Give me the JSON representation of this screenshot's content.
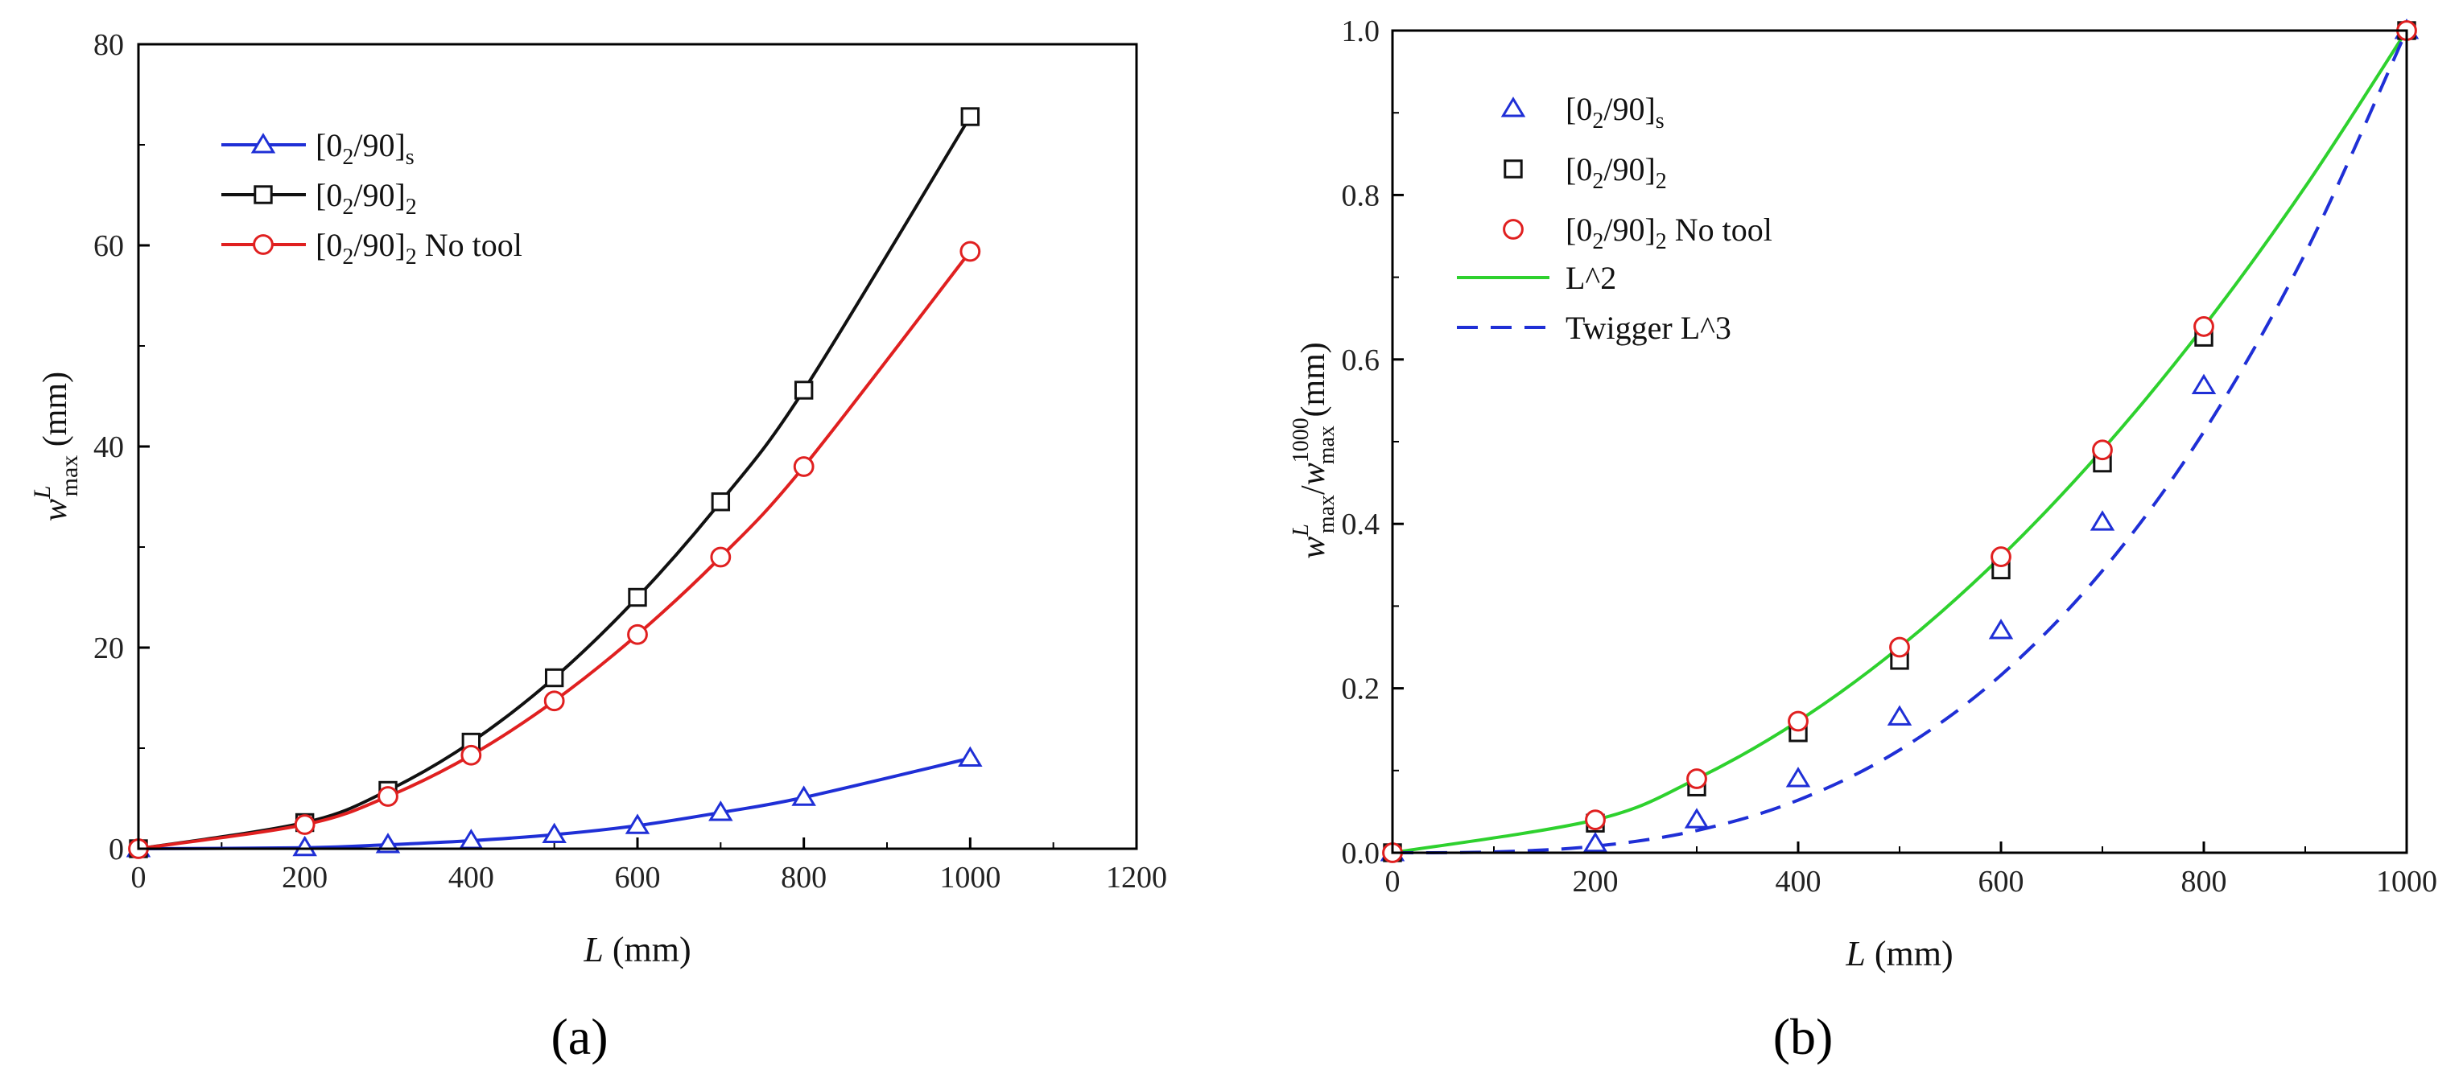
{
  "chart_data": [
    {
      "panel": "a",
      "type": "line",
      "caption": "(a)",
      "xlabel_sym": "L",
      "xlabel_unit": " (mm)",
      "ylabel_sym": "w",
      "ylabel_sup": "L",
      "ylabel_sub": "max",
      "ylabel_unit": " (mm)",
      "xlim": [
        0,
        1200
      ],
      "ylim": [
        0,
        80
      ],
      "xticks": [
        0,
        200,
        400,
        600,
        800,
        1000,
        1200
      ],
      "yticks": [
        0,
        20,
        40,
        60,
        80
      ],
      "series": [
        {
          "name_main": "[0",
          "name_sub1": "2",
          "name_mid": "/90]",
          "name_sub2": "s",
          "name_suffix": "",
          "marker": "triangle",
          "color": "#1f2fd6",
          "x": [
            0,
            200,
            300,
            400,
            500,
            600,
            700,
            800,
            1000
          ],
          "y": [
            0,
            0.1,
            0.4,
            0.8,
            1.4,
            2.3,
            3.6,
            5.1,
            9.0
          ]
        },
        {
          "name_main": "[0",
          "name_sub1": "2",
          "name_mid": "/90]",
          "name_sub2": "2",
          "name_suffix": "",
          "marker": "square",
          "color": "#111111",
          "x": [
            0,
            200,
            300,
            400,
            500,
            600,
            700,
            800,
            1000
          ],
          "y": [
            0,
            2.6,
            5.8,
            10.6,
            17.0,
            25.0,
            34.5,
            45.6,
            72.8
          ]
        },
        {
          "name_main": "[0",
          "name_sub1": "2",
          "name_mid": "/90]",
          "name_sub2": "2",
          "name_suffix": " No tool",
          "marker": "circle",
          "color": "#e02020",
          "x": [
            0,
            200,
            300,
            400,
            500,
            600,
            700,
            800,
            1000
          ],
          "y": [
            0,
            2.4,
            5.2,
            9.3,
            14.7,
            21.3,
            29.0,
            38.0,
            59.4
          ]
        }
      ]
    },
    {
      "panel": "b",
      "type": "scatter",
      "caption": "(b)",
      "xlabel_sym": "L",
      "xlabel_unit": " (mm)",
      "ylabel_sym": "w",
      "ylabel_sup": "L",
      "ylabel_sub": "max",
      "ylabel_sym2": "w",
      "ylabel_sup2": "1000",
      "ylabel_sub2": "max",
      "ylabel_unit": " (mm)",
      "xlim": [
        0,
        1000
      ],
      "ylim": [
        0,
        1.0
      ],
      "xticks": [
        0,
        200,
        400,
        600,
        800,
        1000
      ],
      "yticks": [
        "0.0",
        "0.2",
        "0.4",
        "0.6",
        "0.8",
        "1.0"
      ],
      "series": [
        {
          "name_main": "[0",
          "name_sub1": "2",
          "name_mid": "/90]",
          "name_sub2": "s",
          "name_suffix": "",
          "marker": "triangle",
          "color": "#1f2fd6",
          "x": [
            0,
            200,
            300,
            400,
            500,
            600,
            700,
            800,
            1000
          ],
          "y": [
            0,
            0.011,
            0.04,
            0.09,
            0.165,
            0.27,
            0.402,
            0.568,
            1.0
          ]
        },
        {
          "name_main": "[0",
          "name_sub1": "2",
          "name_mid": "/90]",
          "name_sub2": "2",
          "name_suffix": "",
          "marker": "square",
          "color": "#111111",
          "x": [
            0,
            200,
            300,
            400,
            500,
            600,
            700,
            800,
            1000
          ],
          "y": [
            0,
            0.036,
            0.08,
            0.146,
            0.234,
            0.344,
            0.474,
            0.627,
            1.0
          ]
        },
        {
          "name_main": "[0",
          "name_sub1": "2",
          "name_mid": "/90]",
          "name_sub2": "2",
          "name_suffix": " No tool",
          "marker": "circle",
          "color": "#e02020",
          "x": [
            0,
            200,
            300,
            400,
            500,
            600,
            700,
            800,
            1000
          ],
          "y": [
            0,
            0.04,
            0.09,
            0.16,
            0.25,
            0.36,
            0.49,
            0.64,
            1.0
          ]
        }
      ],
      "curves": [
        {
          "name": "L^2",
          "style": "solid",
          "color": "#2ed12e",
          "x": [
            0,
            200,
            300,
            400,
            500,
            600,
            700,
            800,
            900,
            1000
          ],
          "y": [
            0,
            0.04,
            0.09,
            0.16,
            0.25,
            0.36,
            0.49,
            0.64,
            0.81,
            1.0
          ]
        },
        {
          "name": "Twigger L^3",
          "style": "dashed",
          "color": "#1f2fd6",
          "x": [
            0,
            100,
            200,
            300,
            400,
            500,
            600,
            700,
            800,
            900,
            1000
          ],
          "y": [
            0,
            0.001,
            0.008,
            0.027,
            0.064,
            0.125,
            0.216,
            0.343,
            0.512,
            0.729,
            1.0
          ]
        }
      ]
    }
  ]
}
